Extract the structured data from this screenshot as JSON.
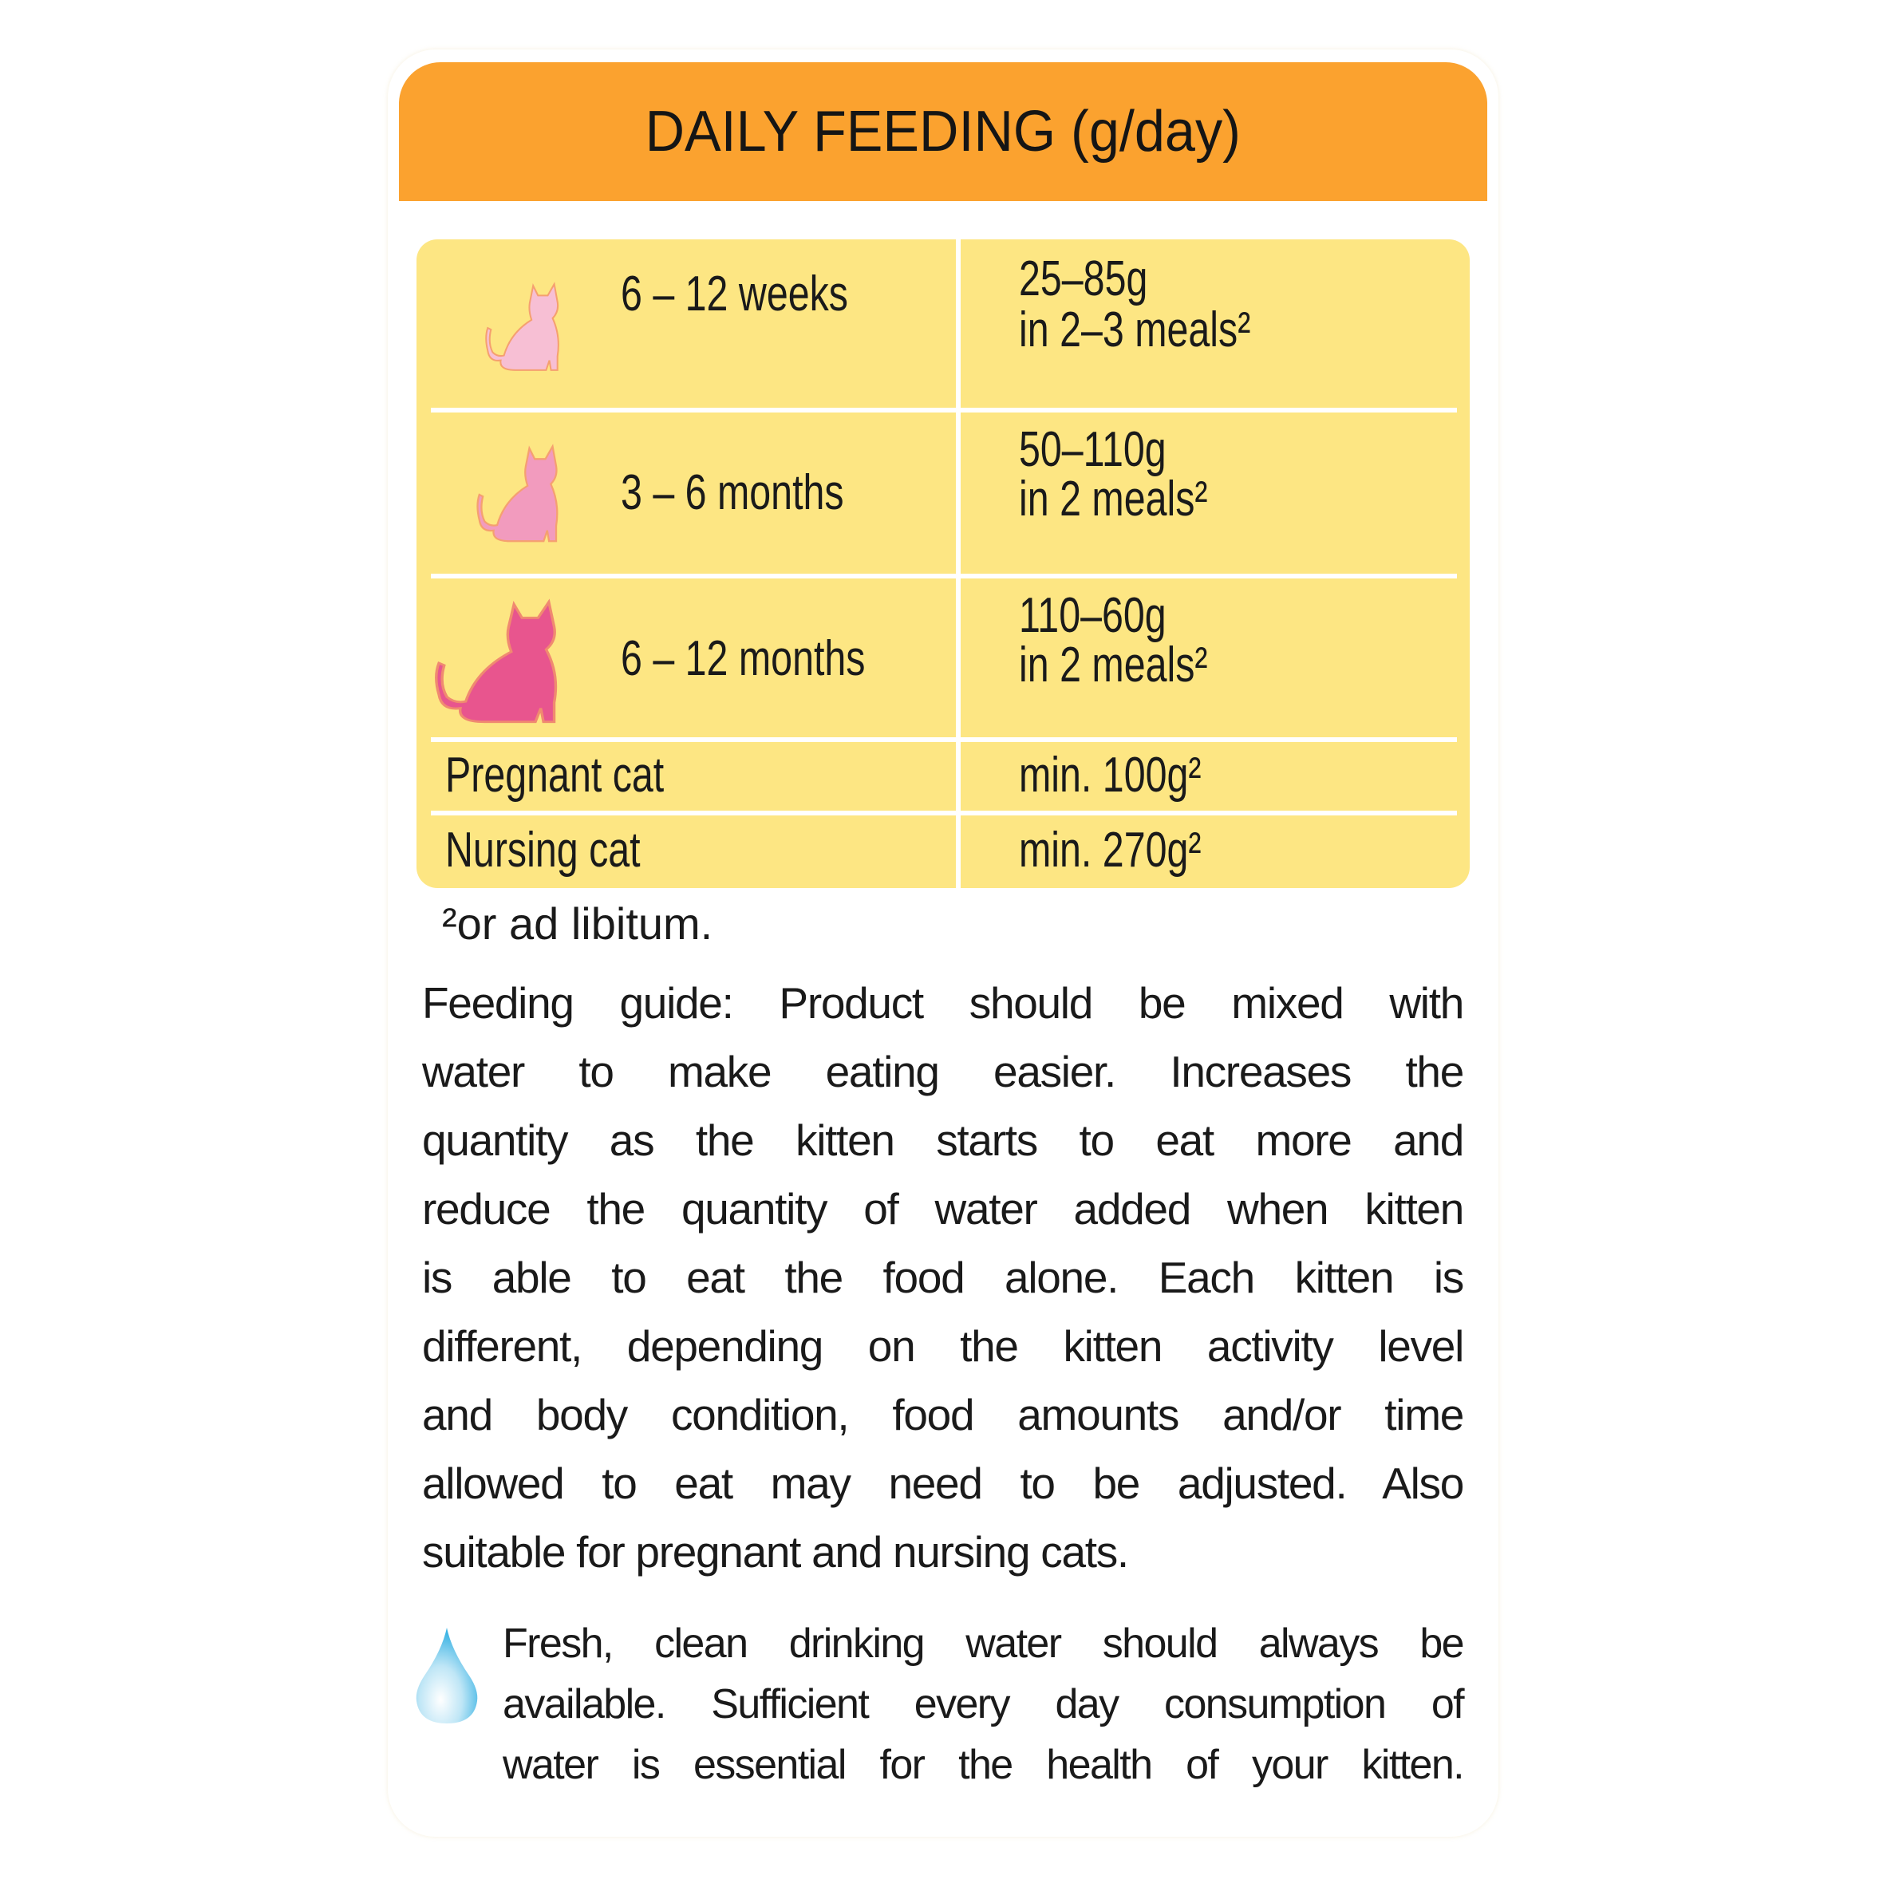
{
  "header": {
    "title": "DAILY FEEDING (g/day)",
    "color": "#FBA22F"
  },
  "table": {
    "background": "#FDE683",
    "rows": [
      {
        "age": "6 – 12 weeks",
        "amount": "25–85g",
        "meals": "in 2–3 meals²",
        "icon": "cat-icon-light-pink",
        "icon_color": "#F7BFD4"
      },
      {
        "age": "3 – 6 months",
        "amount": "50–110g",
        "meals": "in 2 meals²",
        "icon": "cat-icon-pink",
        "icon_color": "#F29BBE"
      },
      {
        "age": "6 – 12 months",
        "amount": "110–60g",
        "meals": "in 2 meals²",
        "icon": "cat-icon-dark-pink",
        "icon_color": "#E8558E"
      },
      {
        "age": "Pregnant cat",
        "amount": "min. 100g²"
      },
      {
        "age": "Nursing cat",
        "amount": "min. 270g²"
      }
    ]
  },
  "footnote": "²or ad libitum.",
  "guide_lines": [
    "Feeding guide: Product should be mixed with",
    "water to make eating easier. Increases the",
    "quantity as the kitten starts to eat more and",
    "reduce the quantity of water added when kitten",
    "is able to eat the food alone. Each kitten is",
    "different, depending on the kitten activity level",
    "and body condition, food amounts and/or time",
    "allowed to eat may need to be adjusted. Also",
    "suitable for pregnant and nursing cats."
  ],
  "water_note": {
    "icon": "water-drop-icon",
    "lines": [
      "Fresh, clean drinking water should always be",
      "available. Sufficient every day consumption of",
      "water is essential for the health of your kitten."
    ]
  }
}
